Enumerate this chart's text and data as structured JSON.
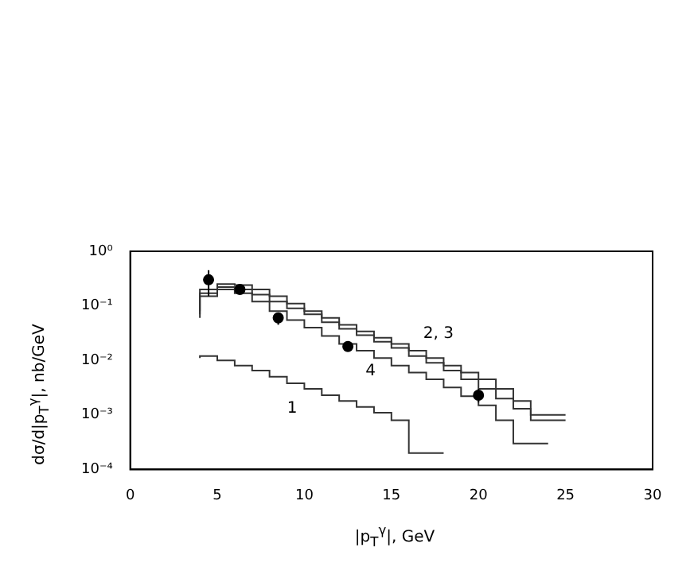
{
  "chart_data": {
    "type": "step",
    "xlabel": "|p$_{T}$$^{γ}$|, GeV",
    "ylabel": "dσ/d|p$_{T}$$^{γ}$|, nb/GeV",
    "log": "y",
    "xlim": [
      0,
      30
    ],
    "xticks": [
      0,
      5,
      10,
      15,
      20,
      25,
      30
    ],
    "ylim": [
      0.0001,
      1
    ],
    "yticks": [
      {
        "value": 0.0001,
        "label": "10⁻⁴"
      },
      {
        "value": 0.001,
        "label": "10⁻³"
      },
      {
        "value": 0.01,
        "label": "10⁻²"
      },
      {
        "value": 0.1,
        "label": "10⁻¹"
      },
      {
        "value": 1,
        "label": "10⁰"
      }
    ],
    "grid": false,
    "legend": false,
    "series": [
      {
        "color": "#333333",
        "x": [
          4,
          5,
          6,
          7,
          8,
          9,
          10,
          11,
          12,
          13,
          14,
          15,
          16,
          17,
          18,
          19,
          20,
          21,
          22,
          23,
          24,
          25
        ],
        "values": [
          0.08,
          0.2,
          0.25,
          0.24,
          0.2,
          0.15,
          0.11,
          0.08,
          0.06,
          0.045,
          0.034,
          0.026,
          0.02,
          0.015,
          0.011,
          0.008,
          0.006,
          0.0045,
          0.003,
          0.0018,
          0.001,
          0.001
        ]
      },
      {
        "color": "#333333",
        "x": [
          4,
          5,
          6,
          7,
          8,
          9,
          10,
          11,
          12,
          13,
          14,
          15,
          16,
          17,
          18,
          19,
          20,
          21,
          22,
          23,
          24,
          25
        ],
        "values": [
          0.07,
          0.17,
          0.22,
          0.2,
          0.16,
          0.12,
          0.09,
          0.07,
          0.05,
          0.038,
          0.029,
          0.022,
          0.017,
          0.012,
          0.009,
          0.0065,
          0.0045,
          0.003,
          0.002,
          0.0013,
          0.0008,
          0.0008
        ]
      },
      {
        "color": "#333333",
        "x": [
          4,
          5,
          6,
          7,
          8,
          9,
          10,
          11,
          12,
          13,
          14,
          15,
          16,
          17,
          18,
          19,
          20,
          21,
          22,
          23,
          24
        ],
        "values": [
          0.06,
          0.15,
          0.2,
          0.17,
          0.12,
          0.08,
          0.055,
          0.04,
          0.028,
          0.02,
          0.015,
          0.011,
          0.008,
          0.006,
          0.0045,
          0.0032,
          0.0022,
          0.0015,
          0.0008,
          0.0003,
          0.0003
        ]
      },
      {
        "color": "#333333",
        "x": [
          4,
          5,
          6,
          7,
          8,
          9,
          10,
          11,
          12,
          13,
          14,
          15,
          16,
          17,
          18
        ],
        "values": [
          0.011,
          0.012,
          0.01,
          0.008,
          0.0065,
          0.005,
          0.0038,
          0.003,
          0.0023,
          0.0018,
          0.0014,
          0.0011,
          0.0008,
          0.0002,
          0.0002
        ]
      },
      {
        "type": "scatter",
        "marker": "circle",
        "color": "#000000",
        "x": [
          4.5,
          6.3,
          8.5,
          12.5,
          20
        ],
        "values": [
          0.3,
          0.2,
          0.06,
          0.018,
          0.0023
        ],
        "errors": [
          [
            0.15,
            0.45
          ],
          [
            0.17,
            0.23
          ],
          [
            0.045,
            0.075
          ],
          [
            0.015,
            0.021
          ],
          [
            0.0017,
            0.003
          ]
        ]
      }
    ],
    "annotations": [
      "2, 3",
      "4",
      "1"
    ]
  }
}
